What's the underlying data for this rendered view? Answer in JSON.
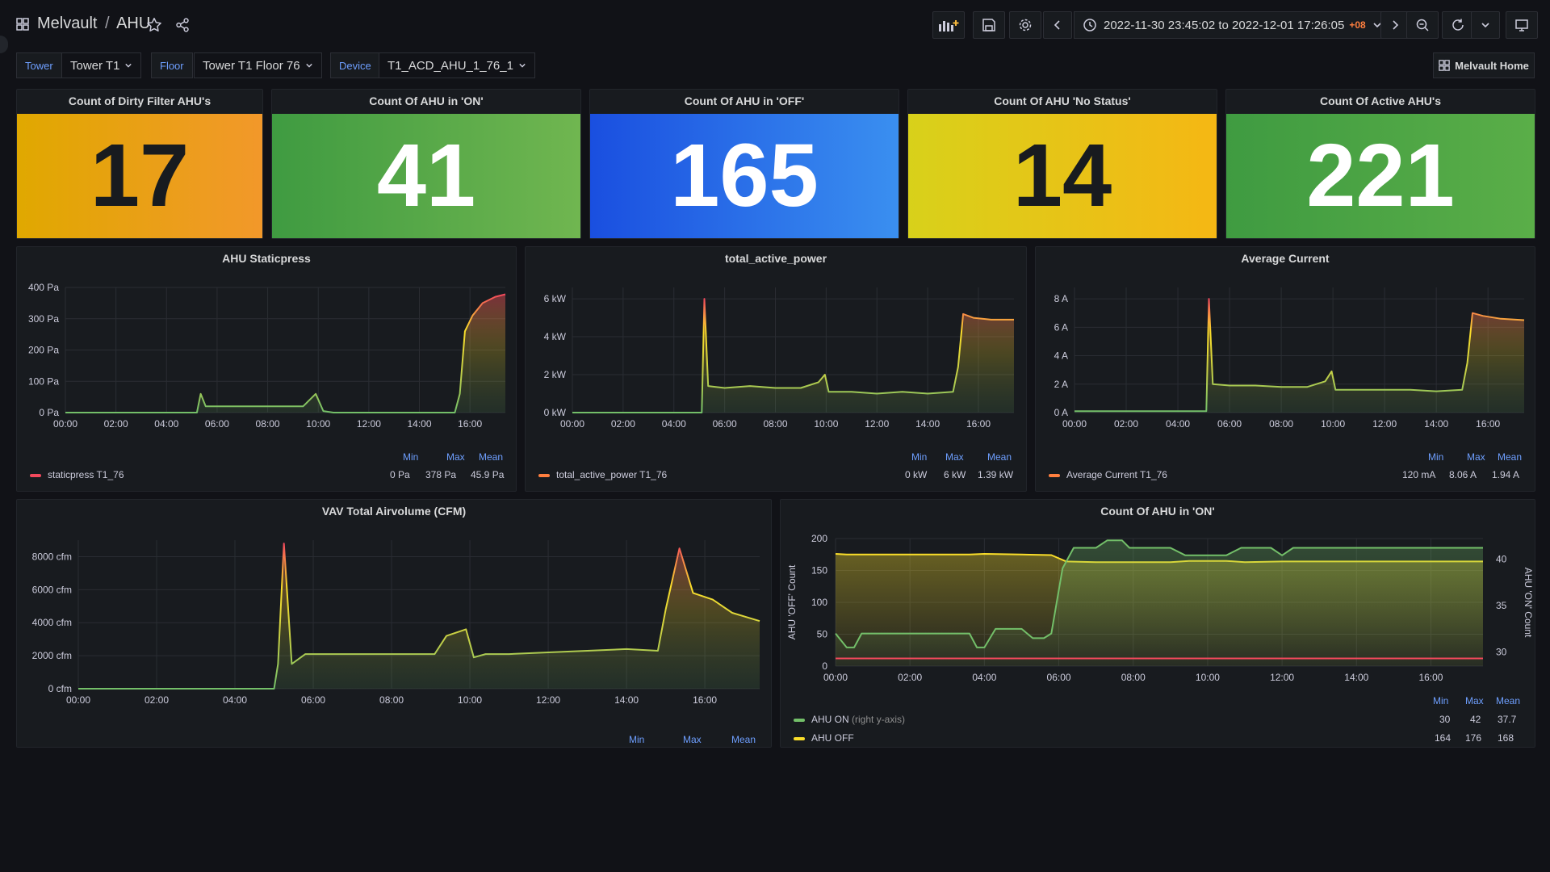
{
  "breadcrumb": {
    "folder": "Melvault",
    "separator": "/",
    "dashboard": "AHU"
  },
  "time_range": {
    "text": "2022-11-30 23:45:02 to 2022-12-01 17:26:05",
    "tz": "+08"
  },
  "icons": [
    "apps-icon",
    "star-icon",
    "share-icon",
    "add-panel-icon",
    "save-icon",
    "settings-icon",
    "chevron-left-icon",
    "clock-icon",
    "chevron-down-icon",
    "chevron-right-icon",
    "zoom-out-icon",
    "refresh-icon",
    "tv-icon",
    "dashboard-icon"
  ],
  "variables": [
    {
      "label": "Tower",
      "value": "Tower T1"
    },
    {
      "label": "Floor",
      "value": "Tower T1 Floor 76"
    },
    {
      "label": "Device",
      "value": "T1_ACD_AHU_1_76_1"
    }
  ],
  "home_link": "Melvault Home",
  "colors": {
    "orange": "#f2cc0c",
    "green": "#56a64b",
    "blue": "#1f60c4",
    "yellow": "#f2cc0c"
  },
  "stats": [
    {
      "title": "Count of Dirty Filter AHU's",
      "value": "17"
    },
    {
      "title": "Count Of AHU in 'ON'",
      "value": "41"
    },
    {
      "title": "Count Of AHU in 'OFF'",
      "value": "165"
    },
    {
      "title": "Count Of AHU 'No Status'",
      "value": "14"
    },
    {
      "title": "Count Of Active AHU's",
      "value": "221"
    }
  ],
  "legend_headers": {
    "min": "Min",
    "max": "Max",
    "mean": "Mean"
  },
  "chart_data": [
    {
      "type": "area",
      "title": "AHU Staticpress",
      "x_ticks": [
        "00:00",
        "02:00",
        "04:00",
        "06:00",
        "08:00",
        "10:00",
        "12:00",
        "14:00",
        "16:00"
      ],
      "y_ticks": [
        "0 Pa",
        "100 Pa",
        "200 Pa",
        "300 Pa",
        "400 Pa"
      ],
      "ylim": [
        0,
        400
      ],
      "xlim": [
        0,
        17.4
      ],
      "series": [
        {
          "name": "staticpress T1_76",
          "min": "0 Pa",
          "max": "378 Pa",
          "mean": "45.9 Pa",
          "points": [
            [
              0,
              0
            ],
            [
              5.2,
              0
            ],
            [
              5.35,
              60
            ],
            [
              5.55,
              20
            ],
            [
              9.4,
              20
            ],
            [
              9.9,
              60
            ],
            [
              10.2,
              5
            ],
            [
              10.6,
              0
            ],
            [
              15.4,
              0
            ],
            [
              15.6,
              60
            ],
            [
              15.8,
              260
            ],
            [
              16.1,
              310
            ],
            [
              16.5,
              350
            ],
            [
              17.0,
              370
            ],
            [
              17.4,
              378
            ]
          ]
        }
      ]
    },
    {
      "type": "area",
      "title": "total_active_power",
      "x_ticks": [
        "00:00",
        "02:00",
        "04:00",
        "06:00",
        "08:00",
        "10:00",
        "12:00",
        "14:00",
        "16:00"
      ],
      "y_ticks": [
        "0 kW",
        "2 kW",
        "4 kW",
        "6 kW"
      ],
      "ylim": [
        0,
        6.6
      ],
      "xlim": [
        0,
        17.4
      ],
      "series": [
        {
          "name": "total_active_power T1_76",
          "min": "0 kW",
          "max": "6 kW",
          "mean": "1.39 kW",
          "points": [
            [
              0,
              0
            ],
            [
              5.1,
              0
            ],
            [
              5.2,
              6.0
            ],
            [
              5.35,
              1.4
            ],
            [
              6,
              1.3
            ],
            [
              7,
              1.4
            ],
            [
              8,
              1.3
            ],
            [
              9,
              1.3
            ],
            [
              9.7,
              1.6
            ],
            [
              9.95,
              2.0
            ],
            [
              10.1,
              1.1
            ],
            [
              11,
              1.1
            ],
            [
              12,
              1.0
            ],
            [
              13,
              1.1
            ],
            [
              14,
              1.0
            ],
            [
              15,
              1.1
            ],
            [
              15.2,
              2.4
            ],
            [
              15.4,
              5.2
            ],
            [
              15.8,
              5.0
            ],
            [
              16.5,
              4.9
            ],
            [
              17.4,
              4.9
            ]
          ]
        }
      ]
    },
    {
      "type": "area",
      "title": "Average Current",
      "x_ticks": [
        "00:00",
        "02:00",
        "04:00",
        "06:00",
        "08:00",
        "10:00",
        "12:00",
        "14:00",
        "16:00"
      ],
      "y_ticks": [
        "0 A",
        "2 A",
        "4 A",
        "6 A",
        "8 A"
      ],
      "ylim": [
        0,
        8.8
      ],
      "xlim": [
        0,
        17.4
      ],
      "series": [
        {
          "name": "Average Current T1_76",
          "min": "120 mA",
          "max": "8.06 A",
          "mean": "1.94 A",
          "points": [
            [
              0,
              0.1
            ],
            [
              5.1,
              0.1
            ],
            [
              5.2,
              8.0
            ],
            [
              5.35,
              2.0
            ],
            [
              6,
              1.9
            ],
            [
              7,
              1.9
            ],
            [
              8,
              1.8
            ],
            [
              9,
              1.8
            ],
            [
              9.7,
              2.2
            ],
            [
              9.95,
              2.9
            ],
            [
              10.1,
              1.6
            ],
            [
              11,
              1.6
            ],
            [
              12,
              1.6
            ],
            [
              13,
              1.6
            ],
            [
              14,
              1.5
            ],
            [
              15,
              1.6
            ],
            [
              15.2,
              3.5
            ],
            [
              15.4,
              7.0
            ],
            [
              15.8,
              6.8
            ],
            [
              16.5,
              6.6
            ],
            [
              17.4,
              6.5
            ]
          ]
        }
      ]
    },
    {
      "type": "area",
      "title": "VAV Total Airvolume (CFM)",
      "x_ticks": [
        "00:00",
        "02:00",
        "04:00",
        "06:00",
        "08:00",
        "10:00",
        "12:00",
        "14:00",
        "16:00"
      ],
      "y_ticks": [
        "0 cfm",
        "2000 cfm",
        "4000 cfm",
        "6000 cfm",
        "8000 cfm"
      ],
      "ylim": [
        0,
        9000
      ],
      "xlim": [
        0,
        17.4
      ],
      "series": [
        {
          "name": "",
          "min": "",
          "max": "",
          "mean": "",
          "points": [
            [
              0,
              0
            ],
            [
              5.0,
              0
            ],
            [
              5.1,
              1500
            ],
            [
              5.25,
              8800
            ],
            [
              5.45,
              1500
            ],
            [
              5.8,
              2100
            ],
            [
              7,
              2100
            ],
            [
              8,
              2100
            ],
            [
              9.1,
              2100
            ],
            [
              9.4,
              3200
            ],
            [
              9.9,
              3600
            ],
            [
              10.1,
              1900
            ],
            [
              10.4,
              2100
            ],
            [
              11,
              2100
            ],
            [
              12,
              2200
            ],
            [
              13,
              2300
            ],
            [
              14,
              2400
            ],
            [
              14.8,
              2300
            ],
            [
              15.0,
              4800
            ],
            [
              15.35,
              8500
            ],
            [
              15.7,
              5800
            ],
            [
              16.2,
              5400
            ],
            [
              16.7,
              4600
            ],
            [
              17.4,
              4100
            ]
          ]
        }
      ]
    },
    {
      "type": "line",
      "title": "Count Of AHU in 'ON'",
      "ylabel_left": "AHU 'OFF' Count",
      "ylabel_right": "AHU 'ON' Count",
      "x_ticks": [
        "00:00",
        "02:00",
        "04:00",
        "06:00",
        "08:00",
        "10:00",
        "12:00",
        "14:00",
        "16:00"
      ],
      "y_ticks_left": [
        "0",
        "50",
        "100",
        "150",
        "200"
      ],
      "y_ticks_right": [
        "30",
        "35",
        "40"
      ],
      "ylim_left": [
        0,
        200
      ],
      "ylim_right": [
        28.5,
        42.2
      ],
      "xlim": [
        0,
        17.4
      ],
      "series": [
        {
          "name": "AHU ON",
          "suffix": "(right y-axis)",
          "axis": "right",
          "min": "30",
          "max": "42",
          "mean": "37.7",
          "points": [
            [
              0,
              32
            ],
            [
              0.3,
              30.5
            ],
            [
              0.5,
              30.5
            ],
            [
              0.7,
              32
            ],
            [
              3.6,
              32
            ],
            [
              3.8,
              30.5
            ],
            [
              4.0,
              30.5
            ],
            [
              4.3,
              32.5
            ],
            [
              5,
              32.5
            ],
            [
              5.3,
              31.5
            ],
            [
              5.6,
              31.5
            ],
            [
              5.8,
              32
            ],
            [
              6.1,
              39
            ],
            [
              6.4,
              41.2
            ],
            [
              7,
              41.2
            ],
            [
              7.3,
              42
            ],
            [
              7.7,
              42
            ],
            [
              7.9,
              41.2
            ],
            [
              9,
              41.2
            ],
            [
              9.4,
              40.4
            ],
            [
              10.5,
              40.4
            ],
            [
              10.9,
              41.2
            ],
            [
              11.7,
              41.2
            ],
            [
              12,
              40.4
            ],
            [
              12.3,
              41.2
            ],
            [
              17.4,
              41.2
            ]
          ]
        },
        {
          "name": "AHU OFF",
          "suffix": "",
          "axis": "left",
          "min": "164",
          "max": "176",
          "mean": "168",
          "points": [
            [
              0,
              176
            ],
            [
              0.3,
              175
            ],
            [
              3.6,
              175
            ],
            [
              4,
              176
            ],
            [
              5,
              175
            ],
            [
              5.8,
              174
            ],
            [
              6.2,
              164
            ],
            [
              7,
              163
            ],
            [
              8,
              163
            ],
            [
              9,
              163
            ],
            [
              9.5,
              165
            ],
            [
              10.5,
              165
            ],
            [
              11,
              163
            ],
            [
              12,
              164
            ],
            [
              17.4,
              164
            ]
          ]
        },
        {
          "name": "",
          "suffix": "",
          "axis": "left",
          "min": "",
          "max": "",
          "mean": "",
          "points": [
            [
              0,
              12
            ],
            [
              17.4,
              12
            ]
          ]
        }
      ]
    }
  ]
}
